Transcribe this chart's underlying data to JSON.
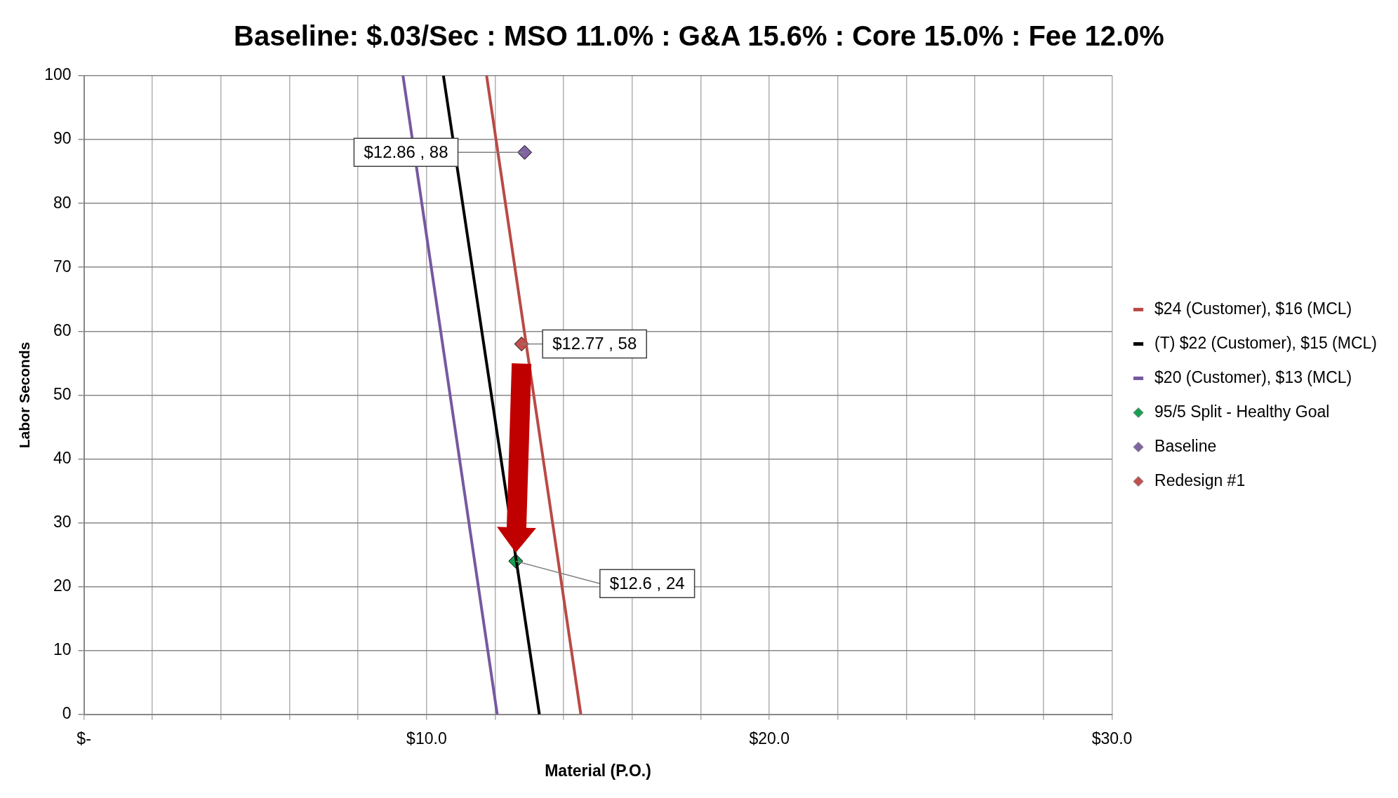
{
  "chart_data": {
    "type": "line",
    "title": "Baseline: $.03/Sec : MSO 11.0% : G&A 15.6% : Core 15.0% : Fee 12.0%",
    "xlabel": "Material (P.O.)",
    "ylabel": "Labor Seconds",
    "xlim": [
      0,
      30
    ],
    "xticks": [
      {
        "value": 0,
        "label": "$-"
      },
      {
        "value": 2,
        "label": null
      },
      {
        "value": 4,
        "label": null
      },
      {
        "value": 6,
        "label": null
      },
      {
        "value": 8,
        "label": null
      },
      {
        "value": 10,
        "label": "$10.0"
      },
      {
        "value": 12,
        "label": null
      },
      {
        "value": 14,
        "label": null
      },
      {
        "value": 16,
        "label": null
      },
      {
        "value": 18,
        "label": null
      },
      {
        "value": 20,
        "label": "$20.0"
      },
      {
        "value": 22,
        "label": null
      },
      {
        "value": 24,
        "label": null
      },
      {
        "value": 26,
        "label": null
      },
      {
        "value": 28,
        "label": null
      },
      {
        "value": 30,
        "label": "$30.0"
      }
    ],
    "ylim": [
      0,
      100
    ],
    "yticks": [
      0,
      10,
      20,
      30,
      40,
      50,
      60,
      70,
      80,
      90,
      100
    ],
    "grid": true,
    "legend": "right",
    "series": [
      {
        "name": "$24 (Customer), $16 (MCL)",
        "marker": "none",
        "color": "#b94a46",
        "x": [
          11.75,
          14.5
        ],
        "values": [
          100,
          0
        ]
      },
      {
        "name": "(T) $22 (Customer), $15 (MCL)",
        "marker": "none",
        "color": "#000000",
        "x": [
          10.49,
          13.29
        ],
        "values": [
          100,
          0
        ]
      },
      {
        "name": "$20 (Customer), $13 (MCL)",
        "marker": "none",
        "color": "#7658a0",
        "x": [
          9.31,
          12.06
        ],
        "values": [
          100,
          0
        ]
      },
      {
        "name": "95/5 Split - Healthy Goal",
        "type": "scatter",
        "marker": "diamond",
        "color": "#16a050",
        "x": [
          12.6
        ],
        "values": [
          24
        ]
      },
      {
        "name": "Baseline",
        "type": "scatter",
        "marker": "diamond",
        "color": "#8064a2",
        "x": [
          12.86
        ],
        "values": [
          88
        ]
      },
      {
        "name": "Redesign #1",
        "type": "scatter",
        "marker": "diamond",
        "color": "#c0504d",
        "x": [
          12.77
        ],
        "values": [
          58
        ]
      }
    ],
    "annotations": [
      {
        "text": "$12.86 , 88",
        "x": 12.86,
        "y": 88
      },
      {
        "text": "$12.77 , 58",
        "x": 12.77,
        "y": 58
      },
      {
        "text": "$12.6 , 24",
        "x": 12.6,
        "y": 24
      }
    ]
  }
}
